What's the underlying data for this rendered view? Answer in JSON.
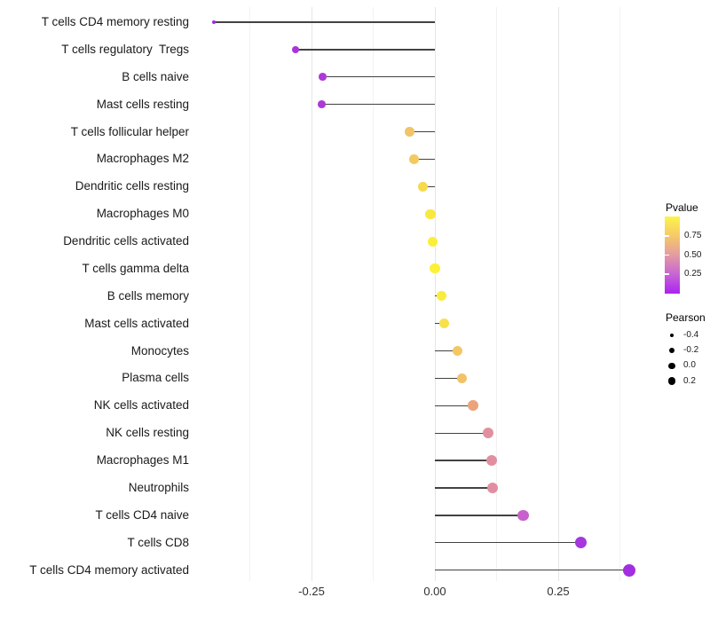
{
  "chart_data": {
    "type": "scatter",
    "variant": "lollipop",
    "orientation": "horizontal",
    "title": "",
    "xlabel": "",
    "ylabel": "",
    "xlim": [
      -0.49,
      0.44
    ],
    "baseline": 0,
    "grid": "vertical-only",
    "categories": [
      "T cells CD4 memory resting",
      "T cells regulatory  Tregs",
      "B cells naive",
      "Mast cells resting",
      "T cells follicular helper",
      "Macrophages M2",
      "Dendritic cells resting",
      "Macrophages M0",
      "Dendritic cells activated",
      "T cells gamma delta",
      "B cells memory",
      "Mast cells activated",
      "Monocytes",
      "Plasma cells",
      "NK cells activated",
      "NK cells resting",
      "Macrophages M1",
      "Neutrophils",
      "T cells CD4 naive",
      "T cells CD8",
      "T cells CD4 memory activated"
    ],
    "series": [
      {
        "name": "Pearson",
        "values": [
          -0.448,
          -0.282,
          -0.228,
          -0.229,
          -0.051,
          -0.042,
          -0.024,
          -0.009,
          -0.005,
          0.0,
          0.013,
          0.019,
          0.046,
          0.055,
          0.078,
          0.108,
          0.115,
          0.117,
          0.179,
          0.296,
          0.394
        ],
        "point_colors": [
          "#A32CDB",
          "#A935D7",
          "#AC39D8",
          "#AC39D8",
          "#F1C46A",
          "#F3CA5F",
          "#F6DA4E",
          "#F9E83F",
          "#FBEE39",
          "#FCF136",
          "#FAEC3D",
          "#F7E14A",
          "#F3C764",
          "#F2C269",
          "#ECA37B",
          "#E2909F",
          "#E18FA0",
          "#E18FA0",
          "#C761CB",
          "#A537DF",
          "#A32EE1"
        ]
      }
    ],
    "x_ticks": [
      {
        "value": -0.25,
        "label": "-0.25"
      },
      {
        "value": 0.0,
        "label": "0.00"
      },
      {
        "value": 0.25,
        "label": "0.25"
      }
    ],
    "gridlines": {
      "major": [
        -0.25,
        0.0,
        0.25
      ],
      "minor": [
        -0.375,
        -0.125,
        0.125,
        0.375
      ]
    },
    "legends": {
      "color": {
        "title": "Pvalue",
        "range": [
          0,
          1
        ],
        "tick_values": [
          0.75,
          0.5,
          0.25
        ],
        "tick_labels": [
          "0.75",
          "0.50",
          "0.25"
        ],
        "gradient_top_to_bottom": [
          "#FCF44D",
          "#F6C967",
          "#E49BA2",
          "#C765D4",
          "#AC22F2"
        ]
      },
      "size": {
        "title": "Pearson",
        "entries": [
          {
            "label": "-0.4",
            "value": -0.4,
            "diameter": 4.5
          },
          {
            "label": "-0.2",
            "value": -0.2,
            "diameter": 6.0
          },
          {
            "label": "0.0",
            "value": 0.0,
            "diameter": 7.5
          },
          {
            "label": "0.2",
            "value": 0.2,
            "diameter": 8.5
          }
        ]
      }
    },
    "colors": {
      "segment": "#424242",
      "grid_major": "#e6e6e6",
      "grid_minor": "#f2f2f2",
      "background": "#ffffff",
      "axis_text": "#1a1a1a"
    }
  }
}
